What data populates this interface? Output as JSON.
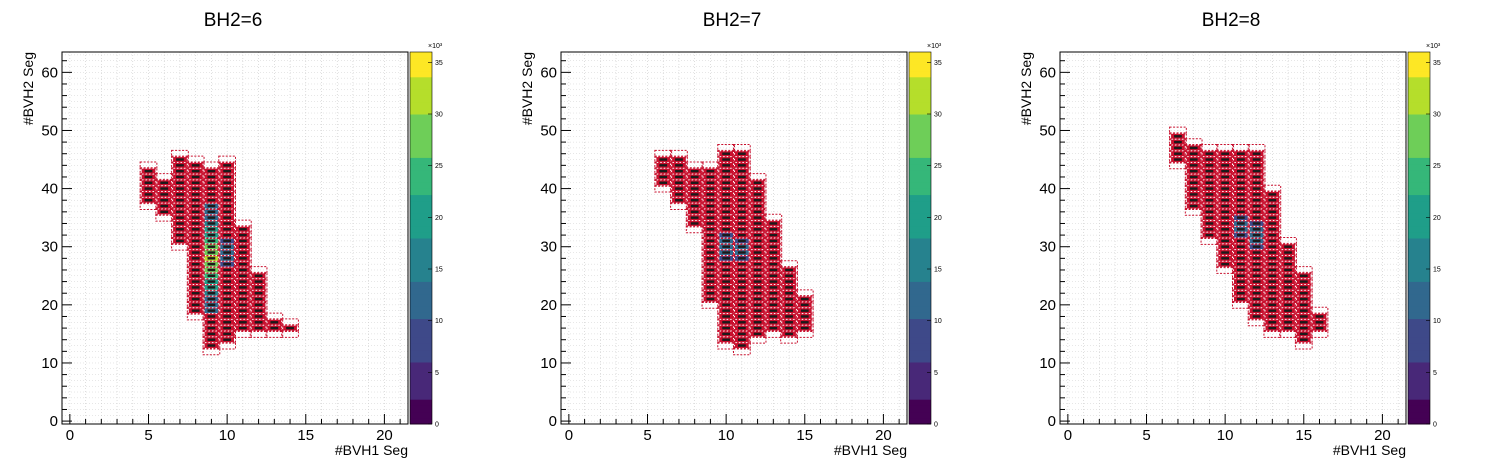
{
  "chart_data": [
    {
      "type": "heatmap",
      "title": "BH2=6",
      "xlabel": "#BVH1 Seg",
      "ylabel": "#BVH2 Seg",
      "xlim": [
        -0.5,
        21.5
      ],
      "ylim": [
        -0.5,
        63.5
      ],
      "zlim": [
        0,
        36000
      ],
      "z_exponent_label": "×10³",
      "x_ticks": [
        "0",
        "5",
        "10",
        "15",
        "20"
      ],
      "y_ticks": [
        "0",
        "10",
        "20",
        "30",
        "40",
        "50",
        "60"
      ],
      "z_ticks": [
        "0",
        "5",
        "10",
        "15",
        "20",
        "25",
        "30",
        "35"
      ],
      "grid": true,
      "colormap": "viridis",
      "palette": {
        "dense": "#c8102e",
        "frame": "#333333",
        "box": "#1a1a1a"
      },
      "columns": [
        {
          "x": 5,
          "ymin": 37,
          "ymax": 44,
          "peak": 2000
        },
        {
          "x": 6,
          "ymin": 35,
          "ymax": 42,
          "peak": 3000
        },
        {
          "x": 7,
          "ymin": 30,
          "ymax": 46,
          "peak": 4000
        },
        {
          "x": 8,
          "ymin": 18,
          "ymax": 45,
          "peak": 8000
        },
        {
          "x": 9,
          "ymin": 12,
          "ymax": 44,
          "peak": 33000
        },
        {
          "x": 10,
          "ymin": 13,
          "ymax": 45,
          "peak": 12000
        },
        {
          "x": 11,
          "ymin": 15,
          "ymax": 34,
          "peak": 6000
        },
        {
          "x": 12,
          "ymin": 15,
          "ymax": 26,
          "peak": 3000
        },
        {
          "x": 13,
          "ymin": 15,
          "ymax": 18,
          "peak": 1500
        },
        {
          "x": 14,
          "ymin": 15,
          "ymax": 17,
          "peak": 800
        }
      ]
    },
    {
      "type": "heatmap",
      "title": "BH2=7",
      "xlabel": "#BVH1 Seg",
      "ylabel": "#BVH2 Seg",
      "xlim": [
        -0.5,
        21.5
      ],
      "ylim": [
        -0.5,
        63.5
      ],
      "zlim": [
        0,
        36000
      ],
      "z_exponent_label": "×10³",
      "x_ticks": [
        "0",
        "5",
        "10",
        "15",
        "20"
      ],
      "y_ticks": [
        "0",
        "10",
        "20",
        "30",
        "40",
        "50",
        "60"
      ],
      "z_ticks": [
        "0",
        "5",
        "10",
        "15",
        "20",
        "25",
        "30",
        "35"
      ],
      "grid": true,
      "colormap": "viridis",
      "palette": {
        "dense": "#c8102e",
        "frame": "#333333",
        "box": "#1a1a1a"
      },
      "columns": [
        {
          "x": 6,
          "ymin": 40,
          "ymax": 46,
          "peak": 2000
        },
        {
          "x": 7,
          "ymin": 37,
          "ymax": 46,
          "peak": 3000
        },
        {
          "x": 8,
          "ymin": 33,
          "ymax": 44,
          "peak": 4000
        },
        {
          "x": 9,
          "ymin": 20,
          "ymax": 44,
          "peak": 6000
        },
        {
          "x": 10,
          "ymin": 13,
          "ymax": 47,
          "peak": 12000
        },
        {
          "x": 11,
          "ymin": 12,
          "ymax": 47,
          "peak": 11000
        },
        {
          "x": 12,
          "ymin": 14,
          "ymax": 42,
          "peak": 7000
        },
        {
          "x": 13,
          "ymin": 15,
          "ymax": 35,
          "peak": 4000
        },
        {
          "x": 14,
          "ymin": 14,
          "ymax": 27,
          "peak": 2500
        },
        {
          "x": 15,
          "ymin": 15,
          "ymax": 22,
          "peak": 1200
        }
      ]
    },
    {
      "type": "heatmap",
      "title": "BH2=8",
      "xlabel": "#BVH1 Seg",
      "ylabel": "#BVH2 Seg",
      "xlim": [
        -0.5,
        21.5
      ],
      "ylim": [
        -0.5,
        63.5
      ],
      "zlim": [
        0,
        36000
      ],
      "z_exponent_label": "×10³",
      "x_ticks": [
        "0",
        "5",
        "10",
        "15",
        "20"
      ],
      "y_ticks": [
        "0",
        "10",
        "20",
        "30",
        "40",
        "50",
        "60"
      ],
      "z_ticks": [
        "0",
        "5",
        "10",
        "15",
        "20",
        "25",
        "30",
        "35"
      ],
      "grid": true,
      "colormap": "viridis",
      "palette": {
        "dense": "#c8102e",
        "frame": "#333333",
        "box": "#1a1a1a"
      },
      "columns": [
        {
          "x": 7,
          "ymin": 44,
          "ymax": 50,
          "peak": 2000
        },
        {
          "x": 8,
          "ymin": 36,
          "ymax": 48,
          "peak": 3000
        },
        {
          "x": 9,
          "ymin": 31,
          "ymax": 47,
          "peak": 5000
        },
        {
          "x": 10,
          "ymin": 26,
          "ymax": 47,
          "peak": 7000
        },
        {
          "x": 11,
          "ymin": 20,
          "ymax": 47,
          "peak": 11000
        },
        {
          "x": 12,
          "ymin": 17,
          "ymax": 47,
          "peak": 12000
        },
        {
          "x": 13,
          "ymin": 15,
          "ymax": 40,
          "peak": 8000
        },
        {
          "x": 14,
          "ymin": 15,
          "ymax": 31,
          "peak": 5000
        },
        {
          "x": 15,
          "ymin": 13,
          "ymax": 26,
          "peak": 2500
        },
        {
          "x": 16,
          "ymin": 15,
          "ymax": 19,
          "peak": 1200
        }
      ]
    }
  ]
}
